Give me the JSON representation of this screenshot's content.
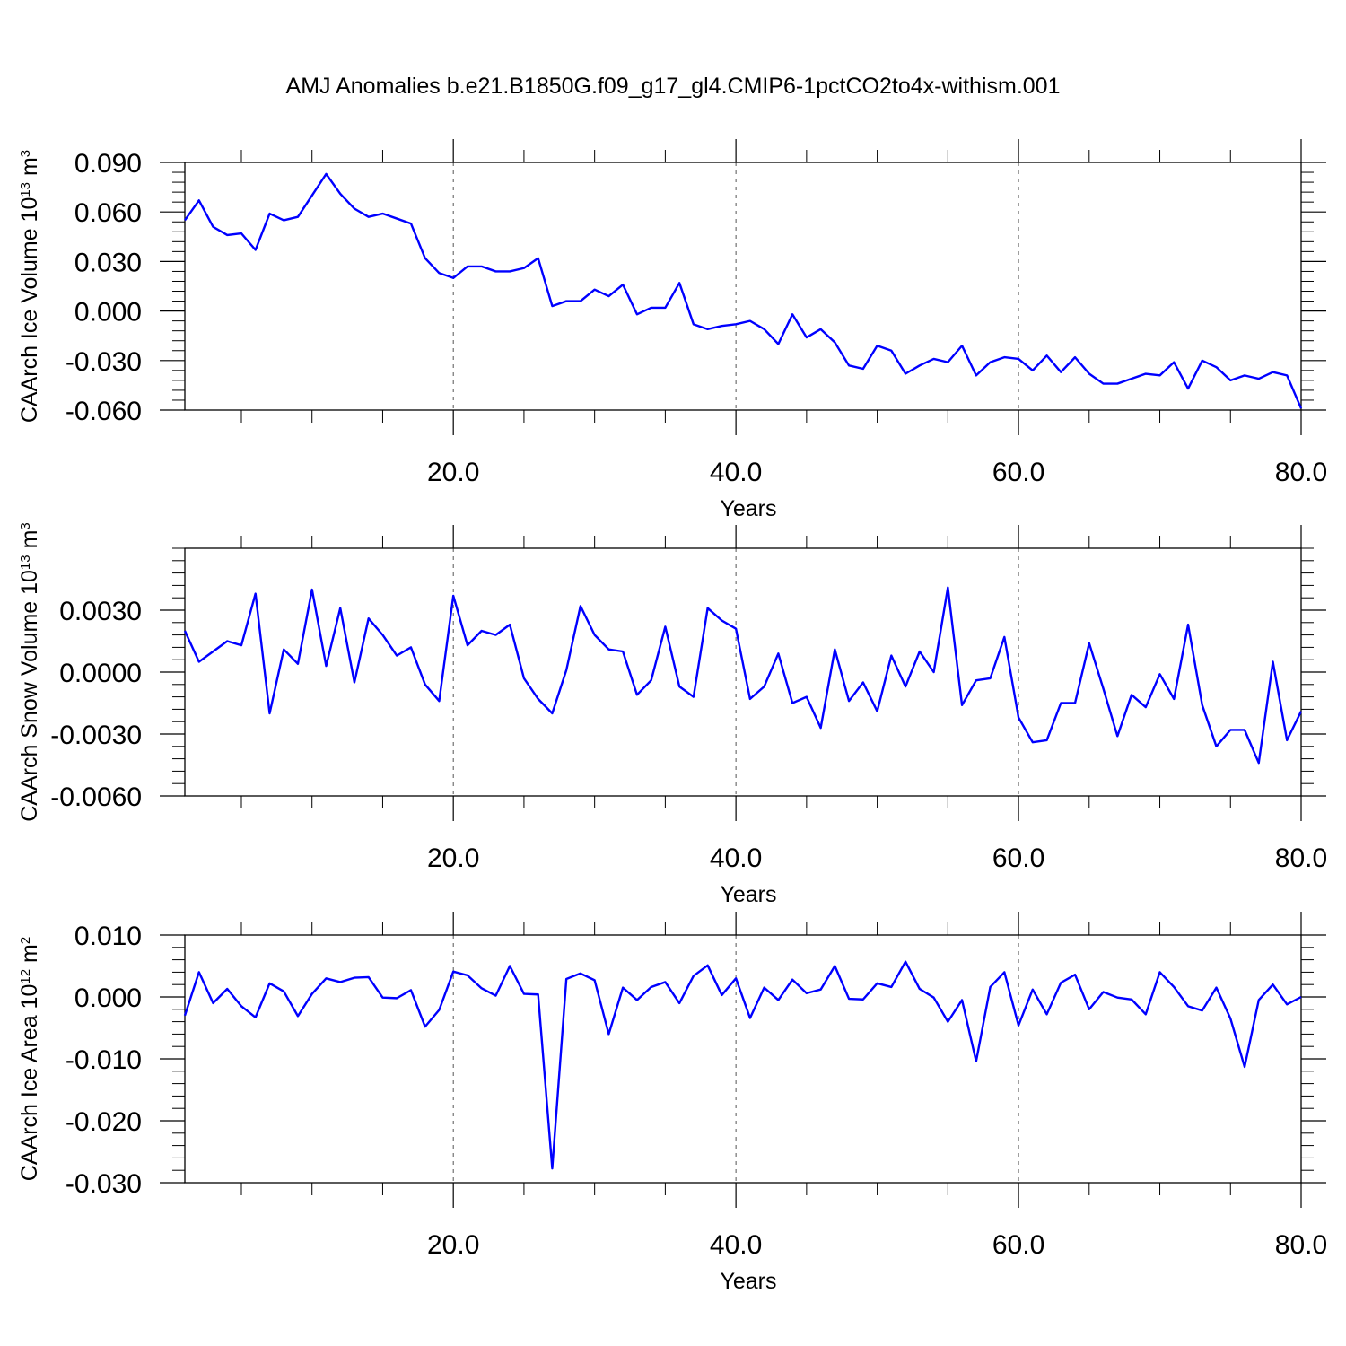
{
  "title": "AMJ Anomalies b.e21.B1850G.f09_g17_gl4.CMIP6-1pctCO2to4x-withism.001",
  "line_color": "#0000ff",
  "chart_data": [
    {
      "type": "line",
      "ylabel_prefix": "CAArch Ice Volume 10",
      "ylabel_exp": "13",
      "ylabel_unit": " m",
      "ylabel_unit_exp": "3",
      "xlabel": "Years",
      "xlim": [
        1,
        80
      ],
      "ylim": [
        -0.06,
        0.09
      ],
      "yticks": [
        0.09,
        0.06,
        0.03,
        0.0,
        -0.03,
        -0.06
      ],
      "ytick_labels": [
        "0.090",
        "0.060",
        "0.030",
        "0.000",
        "-0.030",
        "-0.060"
      ],
      "xticks": [
        20,
        40,
        60,
        80
      ],
      "xtick_labels": [
        "20.0",
        "40.0",
        "60.0",
        "80.0"
      ],
      "grid_x": [
        20,
        40,
        60
      ],
      "values": [
        0.055,
        0.067,
        0.051,
        0.046,
        0.047,
        0.037,
        0.059,
        0.055,
        0.057,
        0.07,
        0.083,
        0.071,
        0.062,
        0.057,
        0.059,
        0.056,
        0.053,
        0.032,
        0.023,
        0.02,
        0.027,
        0.027,
        0.024,
        0.024,
        0.026,
        0.032,
        0.003,
        0.006,
        0.006,
        0.013,
        0.009,
        0.016,
        -0.002,
        0.002,
        0.002,
        0.017,
        -0.008,
        -0.011,
        -0.009,
        -0.008,
        -0.006,
        -0.011,
        -0.02,
        -0.002,
        -0.016,
        -0.011,
        -0.019,
        -0.033,
        -0.035,
        -0.021,
        -0.024,
        -0.038,
        -0.033,
        -0.029,
        -0.031,
        -0.021,
        -0.039,
        -0.031,
        -0.028,
        -0.029,
        -0.036,
        -0.027,
        -0.037,
        -0.028,
        -0.038,
        -0.044,
        -0.044,
        -0.041,
        -0.038,
        -0.039,
        -0.031,
        -0.047,
        -0.03,
        -0.034,
        -0.042,
        -0.039,
        -0.041,
        -0.037,
        -0.039,
        -0.059
      ]
    },
    {
      "type": "line",
      "ylabel_prefix": "CAArch Snow Volume 10",
      "ylabel_exp": "13",
      "ylabel_unit": " m",
      "ylabel_unit_exp": "3",
      "xlabel": "Years",
      "xlim": [
        1,
        80
      ],
      "ylim": [
        -0.006,
        0.006
      ],
      "yticks": [
        0.003,
        0.0,
        -0.003,
        -0.006
      ],
      "ytick_labels": [
        "0.0030",
        "0.0000",
        "-0.0030",
        "-0.0060"
      ],
      "xticks": [
        20,
        40,
        60,
        80
      ],
      "xtick_labels": [
        "20.0",
        "40.0",
        "60.0",
        "80.0"
      ],
      "grid_x": [
        20,
        40,
        60
      ],
      "values": [
        0.002,
        0.0005,
        0.001,
        0.0015,
        0.0013,
        0.0038,
        -0.002,
        0.0011,
        0.0004,
        0.004,
        0.0003,
        0.0031,
        -0.0005,
        0.0026,
        0.0018,
        0.0008,
        0.0012,
        -0.0006,
        -0.0014,
        0.0037,
        0.0013,
        0.002,
        0.0018,
        0.0023,
        -0.0003,
        -0.0013,
        -0.002,
        0.0001,
        0.0032,
        0.0018,
        0.0011,
        0.001,
        -0.0011,
        -0.0004,
        0.0022,
        -0.0007,
        -0.0012,
        0.0031,
        0.0025,
        0.0021,
        -0.0013,
        -0.0007,
        0.0009,
        -0.0015,
        -0.0012,
        -0.0027,
        0.0011,
        -0.0014,
        -0.0005,
        -0.0019,
        0.0008,
        -0.0007,
        0.001,
        0.0,
        0.0041,
        -0.0016,
        -0.0004,
        -0.0003,
        0.0017,
        -0.0022,
        -0.0034,
        -0.0033,
        -0.0015,
        -0.0015,
        0.0014,
        -0.0008,
        -0.0031,
        -0.0011,
        -0.0017,
        -0.0001,
        -0.0013,
        0.0023,
        -0.0016,
        -0.0036,
        -0.0028,
        -0.0028,
        -0.0044,
        0.0005,
        -0.0033,
        -0.0019
      ]
    },
    {
      "type": "line",
      "ylabel_prefix": "CAArch Ice Area 10",
      "ylabel_exp": "12",
      "ylabel_unit": " m",
      "ylabel_unit_exp": "2",
      "xlabel": "Years",
      "xlim": [
        1,
        80
      ],
      "ylim": [
        -0.03,
        0.01
      ],
      "yticks": [
        0.01,
        0.0,
        -0.01,
        -0.02,
        -0.03
      ],
      "ytick_labels": [
        "0.010",
        "0.000",
        "-0.010",
        "-0.020",
        "-0.030"
      ],
      "xticks": [
        20,
        40,
        60,
        80
      ],
      "xtick_labels": [
        "20.0",
        "40.0",
        "60.0",
        "80.0"
      ],
      "grid_x": [
        20,
        40,
        60
      ],
      "values": [
        -0.003,
        0.004,
        -0.001,
        0.0013,
        -0.0015,
        -0.0033,
        0.0022,
        0.0009,
        -0.0031,
        0.0005,
        0.003,
        0.0024,
        0.0031,
        0.0032,
        -0.0001,
        -0.0002,
        0.0011,
        -0.0048,
        -0.0021,
        0.0041,
        0.0035,
        0.0014,
        0.0002,
        0.005,
        0.0005,
        0.0004,
        -0.0277,
        0.0029,
        0.0038,
        0.0027,
        -0.006,
        0.0015,
        -0.0005,
        0.0016,
        0.0024,
        -0.001,
        0.0034,
        0.0051,
        0.0003,
        0.003,
        -0.0034,
        0.0015,
        -0.0005,
        0.0028,
        0.0006,
        0.0012,
        0.005,
        -0.0003,
        -0.0004,
        0.0022,
        0.0016,
        0.0057,
        0.0013,
        -0.0001,
        -0.004,
        -0.0005,
        -0.0104,
        0.0016,
        0.004,
        -0.0046,
        0.0012,
        -0.0028,
        0.0023,
        0.0036,
        -0.002,
        0.0008,
        -0.0001,
        -0.0004,
        -0.0028,
        0.004,
        0.0016,
        -0.0015,
        -0.0022,
        0.0015,
        -0.0035,
        -0.0113,
        -0.0005,
        0.002,
        -0.0012,
        0.0
      ]
    }
  ]
}
